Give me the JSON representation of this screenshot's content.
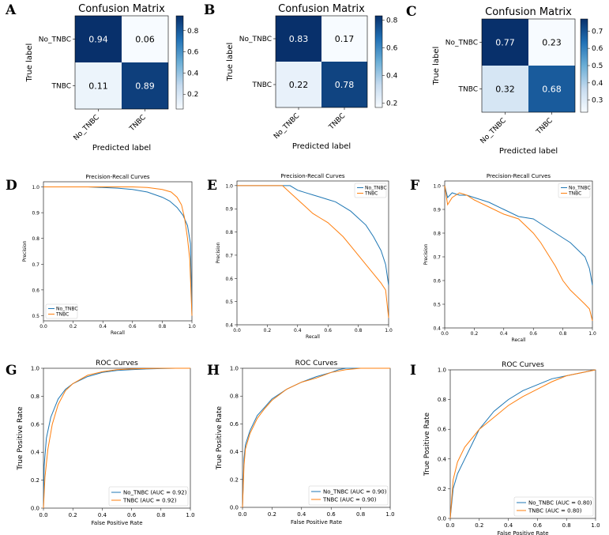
{
  "colors": {
    "blue": "#1f77b4",
    "orange": "#ff7f0e",
    "cmap_low": "#f7fbff",
    "cmap_high": "#08306b"
  },
  "chart_data": [
    {
      "panel": "A",
      "type": "heatmap",
      "title": "Confusion Matrix",
      "xlabel": "Predicted label",
      "ylabel": "True label",
      "row_labels": [
        "No_TNBC",
        "TNBC"
      ],
      "col_labels": [
        "No_TNBC",
        "TNBC"
      ],
      "values": [
        [
          0.94,
          0.06
        ],
        [
          0.11,
          0.89
        ]
      ],
      "value_labels": [
        [
          "0.94",
          "0.06"
        ],
        [
          "0.11",
          "0.89"
        ]
      ],
      "colorbar_ticks": [
        "0.8",
        "0.6",
        "0.4",
        "0.2"
      ],
      "colorbar_tick_values": [
        0.8,
        0.6,
        0.4,
        0.2
      ],
      "colorbar_range": [
        0.06,
        0.94
      ]
    },
    {
      "panel": "B",
      "type": "heatmap",
      "title": "Confusion Matrix",
      "xlabel": "Predicted label",
      "ylabel": "True label",
      "row_labels": [
        "No_TNBC",
        "TNBC"
      ],
      "col_labels": [
        "No_TNBC",
        "TNBC"
      ],
      "values": [
        [
          0.83,
          0.17
        ],
        [
          0.22,
          0.78
        ]
      ],
      "value_labels": [
        [
          "0.83",
          "0.17"
        ],
        [
          "0.22",
          "0.78"
        ]
      ],
      "colorbar_ticks": [
        "0.8",
        "0.6",
        "0.4",
        "0.2"
      ],
      "colorbar_tick_values": [
        0.8,
        0.6,
        0.4,
        0.2
      ],
      "colorbar_range": [
        0.17,
        0.83
      ]
    },
    {
      "panel": "C",
      "type": "heatmap",
      "title": "Confusion Matrix",
      "xlabel": "Predicted label",
      "ylabel": "True label",
      "row_labels": [
        "No_TNBC",
        "TNBC"
      ],
      "col_labels": [
        "No_TNBC",
        "TNBC"
      ],
      "values": [
        [
          0.77,
          0.23
        ],
        [
          0.32,
          0.68
        ]
      ],
      "value_labels": [
        [
          "0.77",
          "0.23"
        ],
        [
          "0.32",
          "0.68"
        ]
      ],
      "colorbar_ticks": [
        "0.7",
        "0.6",
        "0.5",
        "0.4",
        "0.3"
      ],
      "colorbar_tick_values": [
        0.7,
        0.6,
        0.5,
        0.4,
        0.3
      ],
      "colorbar_range": [
        0.23,
        0.77
      ]
    },
    {
      "panel": "D",
      "type": "line",
      "title": "Precision-Recall Curves",
      "xlabel": "Recall",
      "ylabel": "Precision",
      "xlim": [
        0.0,
        1.0
      ],
      "ylim": [
        0.48,
        1.02
      ],
      "xticks": [
        "0.0",
        "0.2",
        "0.4",
        "0.6",
        "0.8",
        "1.0"
      ],
      "yticks": [
        "0.5",
        "0.6",
        "0.7",
        "0.8",
        "0.9",
        "1.0"
      ],
      "legend": "bottom-left",
      "series": [
        {
          "name": "No_TNBC",
          "color": "#1f77b4",
          "x": [
            0.0,
            0.3,
            0.5,
            0.6,
            0.7,
            0.8,
            0.85,
            0.9,
            0.94,
            0.97,
            0.99,
            1.0
          ],
          "y": [
            1.0,
            1.0,
            0.995,
            0.99,
            0.98,
            0.96,
            0.945,
            0.92,
            0.89,
            0.85,
            0.78,
            0.5
          ]
        },
        {
          "name": "TNBC",
          "color": "#ff7f0e",
          "x": [
            0.0,
            0.4,
            0.6,
            0.7,
            0.8,
            0.86,
            0.9,
            0.93,
            0.95,
            0.97,
            0.985,
            1.0
          ],
          "y": [
            1.0,
            1.0,
            1.0,
            0.998,
            0.99,
            0.98,
            0.96,
            0.93,
            0.88,
            0.8,
            0.72,
            0.5
          ]
        }
      ]
    },
    {
      "panel": "E",
      "type": "line",
      "title": "Precision-Recall Curves",
      "xlabel": "Recall",
      "ylabel": "Precision",
      "xlim": [
        0.0,
        1.0
      ],
      "ylim": [
        0.4,
        1.02
      ],
      "xticks": [
        "0.0",
        "0.2",
        "0.4",
        "0.6",
        "0.8",
        "1.0"
      ],
      "yticks": [
        "0.4",
        "0.5",
        "0.6",
        "0.7",
        "0.8",
        "0.9",
        "1.0"
      ],
      "legend": "top-right",
      "series": [
        {
          "name": "No_TNBC",
          "color": "#1f77b4",
          "x": [
            0.0,
            0.35,
            0.4,
            0.45,
            0.5,
            0.55,
            0.6,
            0.65,
            0.7,
            0.75,
            0.8,
            0.85,
            0.9,
            0.95,
            0.98,
            1.0
          ],
          "y": [
            1.0,
            1.0,
            0.98,
            0.97,
            0.96,
            0.95,
            0.94,
            0.93,
            0.91,
            0.89,
            0.86,
            0.83,
            0.78,
            0.72,
            0.66,
            0.57
          ]
        },
        {
          "name": "TNBC",
          "color": "#ff7f0e",
          "x": [
            0.0,
            0.3,
            0.35,
            0.4,
            0.45,
            0.5,
            0.55,
            0.6,
            0.65,
            0.7,
            0.75,
            0.8,
            0.85,
            0.9,
            0.95,
            0.98,
            1.0
          ],
          "y": [
            1.0,
            1.0,
            0.97,
            0.94,
            0.91,
            0.88,
            0.86,
            0.84,
            0.81,
            0.78,
            0.74,
            0.7,
            0.66,
            0.62,
            0.58,
            0.55,
            0.43
          ]
        }
      ]
    },
    {
      "panel": "F",
      "type": "line",
      "title": "Precision-Recall Curves",
      "xlabel": "Recall",
      "ylabel": "Precision",
      "xlim": [
        0.0,
        1.0
      ],
      "ylim": [
        0.4,
        1.02
      ],
      "xticks": [
        "0.0",
        "0.2",
        "0.4",
        "0.6",
        "0.8",
        "1.0"
      ],
      "yticks": [
        "0.4",
        "0.5",
        "0.6",
        "0.7",
        "0.8",
        "0.9",
        "1.0"
      ],
      "legend": "top-right",
      "series": [
        {
          "name": "No_TNBC",
          "color": "#1f77b4",
          "x": [
            0.0,
            0.02,
            0.05,
            0.1,
            0.15,
            0.2,
            0.3,
            0.4,
            0.5,
            0.6,
            0.65,
            0.7,
            0.75,
            0.8,
            0.85,
            0.9,
            0.95,
            0.98,
            1.0
          ],
          "y": [
            1.0,
            0.95,
            0.97,
            0.96,
            0.96,
            0.95,
            0.93,
            0.9,
            0.87,
            0.86,
            0.84,
            0.82,
            0.8,
            0.78,
            0.76,
            0.73,
            0.7,
            0.65,
            0.58
          ]
        },
        {
          "name": "TNBC",
          "color": "#ff7f0e",
          "x": [
            0.0,
            0.02,
            0.05,
            0.1,
            0.15,
            0.2,
            0.3,
            0.4,
            0.5,
            0.6,
            0.65,
            0.7,
            0.75,
            0.8,
            0.85,
            0.9,
            0.95,
            0.98,
            1.0
          ],
          "y": [
            1.0,
            0.92,
            0.95,
            0.97,
            0.96,
            0.94,
            0.91,
            0.88,
            0.86,
            0.8,
            0.76,
            0.71,
            0.66,
            0.6,
            0.56,
            0.53,
            0.5,
            0.48,
            0.43
          ]
        }
      ]
    },
    {
      "panel": "G",
      "type": "line",
      "title": "ROC Curves",
      "xlabel": "False Positive Rate",
      "ylabel": "True Positive Rate",
      "xlim": [
        0.0,
        1.0
      ],
      "ylim": [
        0.0,
        1.0
      ],
      "xticks": [
        "0.0",
        "0.2",
        "0.4",
        "0.6",
        "0.8",
        "1.0"
      ],
      "yticks": [
        "0.0",
        "0.2",
        "0.4",
        "0.6",
        "0.8",
        "1.0"
      ],
      "legend": "bottom-right",
      "series": [
        {
          "name": "No_TNBC",
          "label": "No_TNBC (AUC = 0.92)",
          "color": "#1f77b4",
          "x": [
            0.0,
            0.005,
            0.02,
            0.05,
            0.1,
            0.15,
            0.2,
            0.3,
            0.4,
            0.5,
            0.6,
            0.7,
            0.8,
            0.9,
            1.0
          ],
          "y": [
            0.0,
            0.3,
            0.5,
            0.65,
            0.78,
            0.85,
            0.89,
            0.94,
            0.97,
            0.985,
            0.99,
            0.995,
            0.998,
            1.0,
            1.0
          ]
        },
        {
          "name": "TNBC",
          "label": "TNBC (AUC = 0.92)",
          "color": "#ff7f0e",
          "x": [
            0.0,
            0.01,
            0.03,
            0.06,
            0.1,
            0.15,
            0.2,
            0.3,
            0.4,
            0.5,
            0.6,
            0.7,
            0.8,
            0.9,
            1.0
          ],
          "y": [
            0.0,
            0.22,
            0.42,
            0.6,
            0.74,
            0.84,
            0.89,
            0.95,
            0.975,
            0.99,
            0.995,
            0.998,
            1.0,
            1.0,
            1.0
          ]
        }
      ]
    },
    {
      "panel": "H",
      "type": "line",
      "title": "ROC Curves",
      "xlabel": "False Positive Rate",
      "ylabel": "True Positive Rate",
      "xlim": [
        0.0,
        1.0
      ],
      "ylim": [
        0.0,
        1.0
      ],
      "xticks": [
        "0.0",
        "0.2",
        "0.4",
        "0.6",
        "0.8",
        "1.0"
      ],
      "yticks": [
        "0.0",
        "0.2",
        "0.4",
        "0.6",
        "0.8",
        "1.0"
      ],
      "legend": "bottom-right",
      "series": [
        {
          "name": "No_TNBC",
          "label": "No_TNBC (AUC = 0.90)",
          "color": "#1f77b4",
          "x": [
            0.0,
            0.01,
            0.02,
            0.05,
            0.1,
            0.15,
            0.2,
            0.3,
            0.4,
            0.5,
            0.6,
            0.65,
            0.7,
            0.8,
            0.9,
            1.0
          ],
          "y": [
            0.0,
            0.35,
            0.45,
            0.55,
            0.66,
            0.72,
            0.78,
            0.85,
            0.9,
            0.94,
            0.97,
            0.99,
            1.0,
            1.0,
            1.0,
            1.0
          ]
        },
        {
          "name": "TNBC",
          "label": "TNBC (AUC = 0.90)",
          "color": "#ff7f0e",
          "x": [
            0.0,
            0.01,
            0.02,
            0.05,
            0.1,
            0.15,
            0.2,
            0.3,
            0.4,
            0.5,
            0.6,
            0.7,
            0.8,
            0.9,
            1.0
          ],
          "y": [
            0.0,
            0.3,
            0.42,
            0.53,
            0.64,
            0.71,
            0.77,
            0.85,
            0.9,
            0.93,
            0.97,
            0.99,
            1.0,
            1.0,
            1.0
          ]
        }
      ]
    },
    {
      "panel": "I",
      "type": "line",
      "title": "ROC Curves",
      "xlabel": "False Positive Rate",
      "ylabel": "True Positive Rate",
      "xlim": [
        0.0,
        1.0
      ],
      "ylim": [
        0.0,
        1.0
      ],
      "xticks": [
        "0.0",
        "0.2",
        "0.4",
        "0.6",
        "0.8",
        "1.0"
      ],
      "yticks": [
        "0.0",
        "0.2",
        "0.4",
        "0.6",
        "0.8",
        "1.0"
      ],
      "legend": "bottom-right",
      "series": [
        {
          "name": "No_TNBC",
          "label": "No_TNBC (AUC = 0.80)",
          "color": "#1f77b4",
          "x": [
            0.0,
            0.02,
            0.05,
            0.1,
            0.15,
            0.2,
            0.25,
            0.3,
            0.4,
            0.5,
            0.6,
            0.7,
            0.8,
            0.9,
            1.0
          ],
          "y": [
            0.0,
            0.2,
            0.3,
            0.4,
            0.5,
            0.6,
            0.66,
            0.72,
            0.8,
            0.86,
            0.9,
            0.94,
            0.96,
            0.98,
            1.0
          ]
        },
        {
          "name": "TNBC",
          "label": "TNBC (AUC = 0.80)",
          "color": "#ff7f0e",
          "x": [
            0.0,
            0.02,
            0.05,
            0.1,
            0.15,
            0.2,
            0.25,
            0.3,
            0.4,
            0.5,
            0.6,
            0.7,
            0.8,
            0.9,
            1.0
          ],
          "y": [
            0.0,
            0.26,
            0.38,
            0.48,
            0.54,
            0.6,
            0.64,
            0.68,
            0.76,
            0.82,
            0.87,
            0.92,
            0.96,
            0.98,
            1.0
          ]
        }
      ]
    }
  ]
}
